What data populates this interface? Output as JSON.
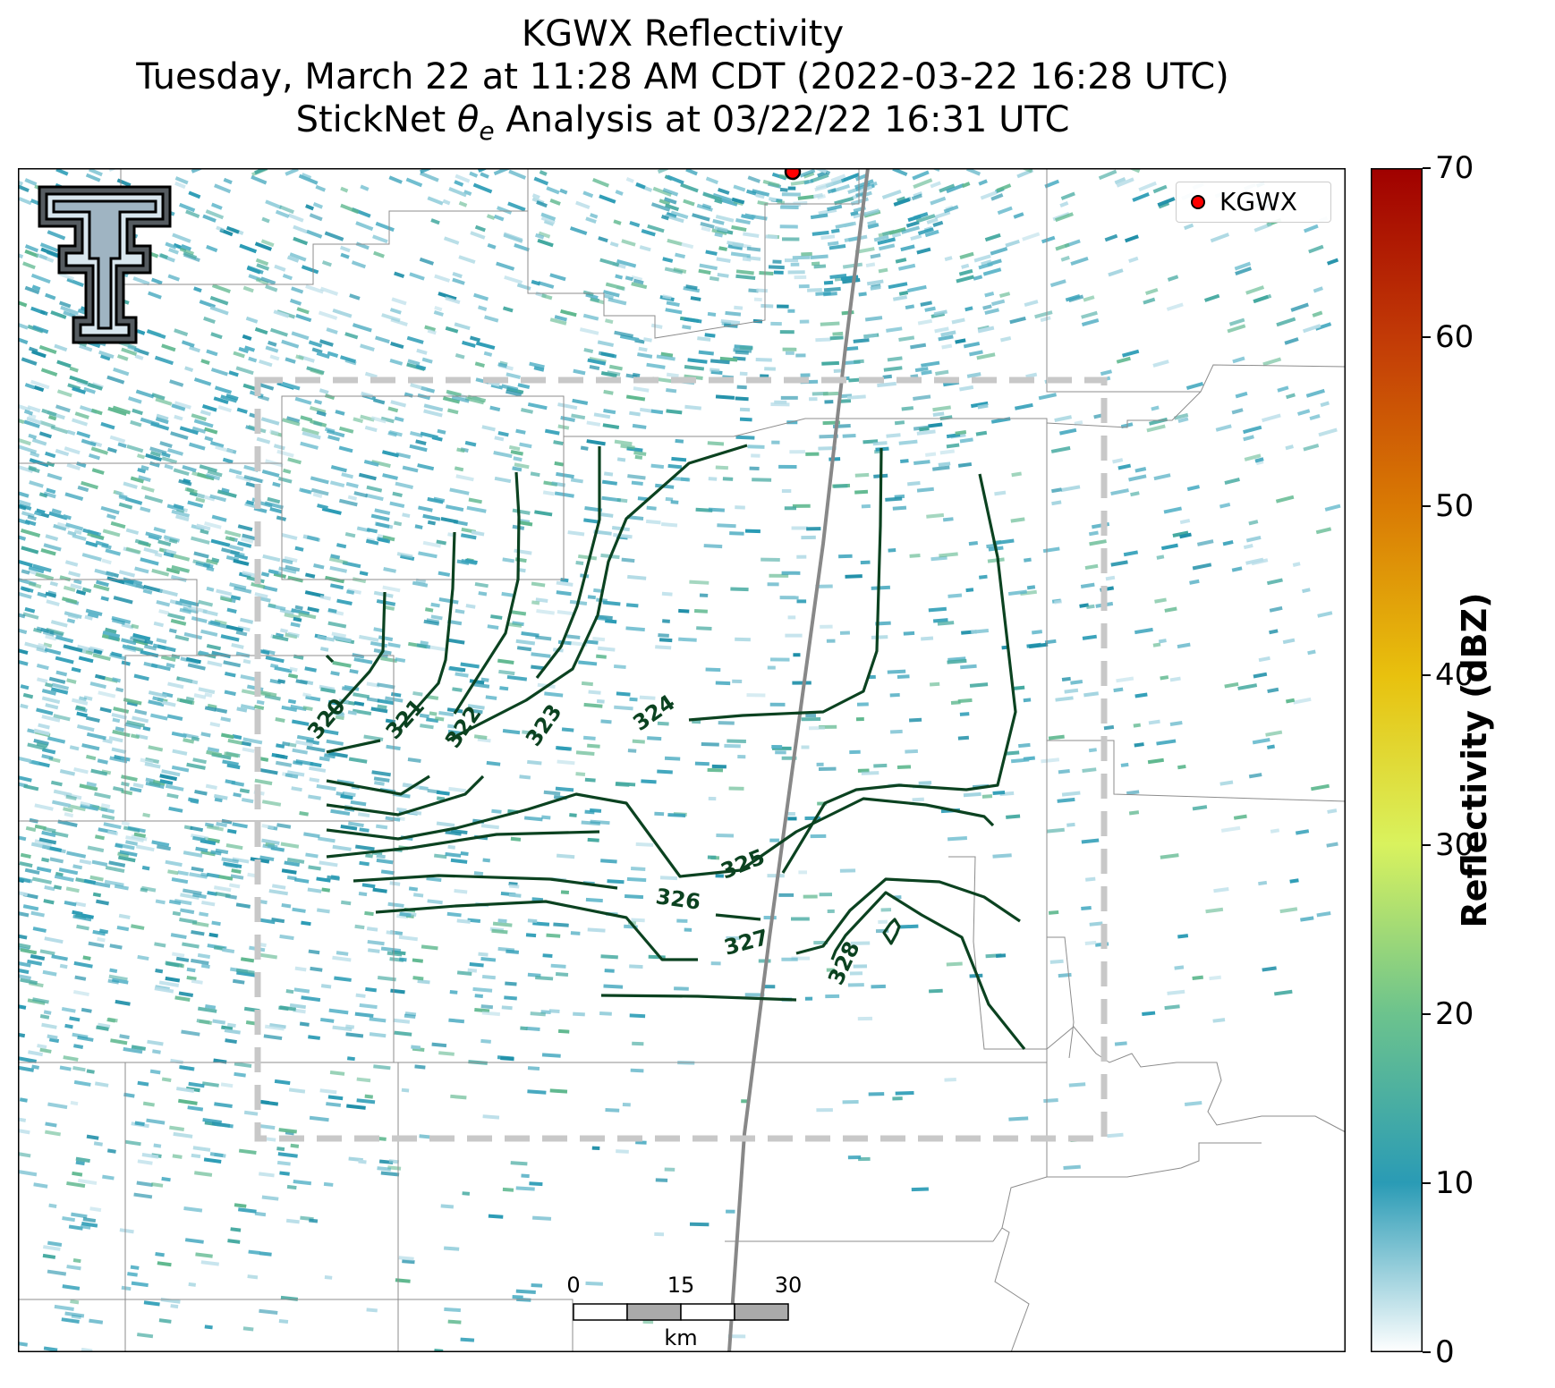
{
  "title": {
    "line1": "KGWX Reflectivity",
    "line2": "Tuesday, March 22 at 11:28 AM CDT (2022-03-22 16:28 UTC)",
    "line3_prefix": "StickNet ",
    "line3_symbol": "θ",
    "line3_subscript": "e",
    "line3_suffix": " Analysis at 03/22/22 16:31 UTC"
  },
  "legend": {
    "label": "KGWX",
    "marker_color": "#ff0000"
  },
  "colorbar": {
    "label": "Reflectivity (dBZ)",
    "ticks": [
      "0",
      "10",
      "20",
      "30",
      "40",
      "50",
      "60",
      "70"
    ],
    "range": [
      0,
      70
    ],
    "colors": [
      "#ffffff",
      "#2a9bb5",
      "#6cc38d",
      "#d9f25e",
      "#e8c10e",
      "#d97a04",
      "#c23a06",
      "#a00000"
    ]
  },
  "scale_bar": {
    "ticks": [
      "0",
      "15",
      "30"
    ],
    "unit": "km"
  },
  "contours": {
    "color": "#0b4220",
    "labels": [
      "320",
      "321",
      "322",
      "323",
      "324",
      "325",
      "326",
      "327",
      "328"
    ]
  },
  "colors": {
    "analysis_box": "#c8c8c8",
    "borders": "#8c8c8c",
    "highway": "#999999",
    "radar_site": "#ff0000"
  },
  "logo_icon": "texas-tech-double-t-logo"
}
